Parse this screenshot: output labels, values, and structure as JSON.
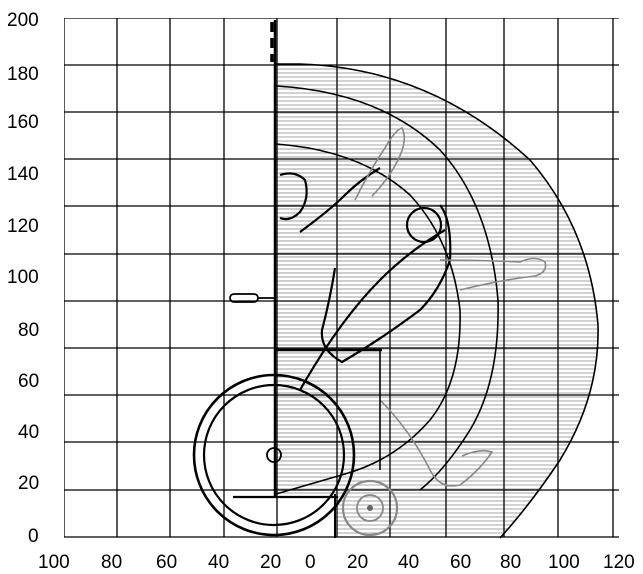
{
  "diagram": {
    "x_ticks": [
      "100",
      "80",
      "60",
      "40",
      "20",
      "0",
      "20",
      "40",
      "60",
      "80",
      "100",
      "120"
    ],
    "y_ticks": [
      "200",
      "180",
      "160",
      "140",
      "120",
      "100",
      "80",
      "60",
      "40",
      "20",
      "0"
    ],
    "colors": {
      "line": "#000000",
      "hatch": "#9a9a9a",
      "background": "#ffffff"
    }
  }
}
